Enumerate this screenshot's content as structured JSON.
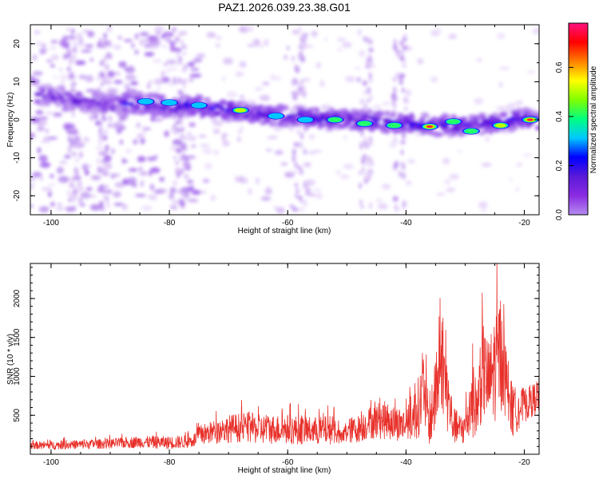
{
  "title": "PAZ1.2026.039.23.38.G01",
  "chart_data": [
    {
      "type": "heatmap",
      "name": "spectrogram",
      "xlabel": "Height of straight line (km)",
      "ylabel": "Frequency (Hz)",
      "xlim": [
        -103.5,
        -17.5
      ],
      "ylim": [
        -25,
        25
      ],
      "xticks": [
        -100,
        -80,
        -60,
        -40,
        -20
      ],
      "xtick_labels": [
        "-100",
        "-80",
        "-60",
        "-40",
        "-20"
      ],
      "yticks": [
        -20,
        -10,
        0,
        10,
        20
      ],
      "ytick_labels": [
        "-20",
        "-10",
        "0",
        "10",
        "20"
      ],
      "colorbar": {
        "label": "Normalized spectral amplitude",
        "range": [
          0,
          0.78
        ],
        "ticks": [
          0,
          0.2,
          0.4,
          0.6
        ],
        "tick_labels": [
          "0.0",
          "0.2",
          "0.4",
          "0.6"
        ],
        "colors": [
          "#ffffff",
          "#e6d0fa",
          "#b58cf0",
          "#8a2be2",
          "#5a1ad8",
          "#0000ff",
          "#00c8ff",
          "#00ff80",
          "#80ff00",
          "#ffff00",
          "#ff8000",
          "#ff0000",
          "#ff1080"
        ]
      },
      "ridge": {
        "description": "dominant frequency trace",
        "x": [
          -101,
          -95,
          -90,
          -85,
          -80,
          -75,
          -70,
          -65,
          -60,
          -55,
          -50,
          -45,
          -40,
          -35,
          -30,
          -25,
          -20,
          -18
        ],
        "freq": [
          6.5,
          5.0,
          4.0,
          4.5,
          3.5,
          3.5,
          2.5,
          1.5,
          1.0,
          0.5,
          0.0,
          -0.5,
          -1.0,
          -1.5,
          -1.5,
          -1.0,
          0.5,
          -0.5
        ]
      },
      "peaks": [
        {
          "x": -84,
          "freq": 4.8,
          "amp": 0.35
        },
        {
          "x": -80,
          "freq": 4.5,
          "amp": 0.3
        },
        {
          "x": -75,
          "freq": 3.8,
          "amp": 0.35
        },
        {
          "x": -68,
          "freq": 2.5,
          "amp": 0.55
        },
        {
          "x": -62,
          "freq": 1.0,
          "amp": 0.35
        },
        {
          "x": -57,
          "freq": 0.0,
          "amp": 0.3
        },
        {
          "x": -52,
          "freq": 0.0,
          "amp": 0.45
        },
        {
          "x": -47,
          "freq": -1.0,
          "amp": 0.4
        },
        {
          "x": -42,
          "freq": -1.5,
          "amp": 0.45
        },
        {
          "x": -36,
          "freq": -1.8,
          "amp": 0.78
        },
        {
          "x": -32,
          "freq": -0.5,
          "amp": 0.45
        },
        {
          "x": -29,
          "freq": -3.0,
          "amp": 0.4
        },
        {
          "x": -24,
          "freq": -1.5,
          "amp": 0.55
        },
        {
          "x": -19,
          "freq": 0.0,
          "amp": 0.78
        }
      ]
    },
    {
      "type": "line",
      "name": "snr",
      "xlabel": "Height of straight line (km)",
      "ylabel": "SNR (10 * v/v)",
      "xlim": [
        -103.5,
        -17.5
      ],
      "ylim": [
        0,
        2450
      ],
      "xticks": [
        -100,
        -80,
        -60,
        -40,
        -20
      ],
      "xtick_labels": [
        "-100",
        "-80",
        "-60",
        "-40",
        "-20"
      ],
      "yticks": [
        500,
        1000,
        1500,
        2000
      ],
      "ytick_labels": [
        "500",
        "1000",
        "1500",
        "2000"
      ],
      "line_color": "#e8302a",
      "envelope": {
        "x": [
          -103.5,
          -100,
          -95,
          -90,
          -85,
          -80,
          -76,
          -75,
          -73,
          -70,
          -67,
          -65,
          -60,
          -55,
          -52,
          -51,
          -50,
          -48,
          -46,
          -44,
          -42,
          -40,
          -39,
          -38,
          -37,
          -36,
          -35,
          -34,
          -33,
          -32,
          -31,
          -30,
          -29,
          -28,
          -27,
          -26,
          -25,
          -24,
          -23,
          -22,
          -21,
          -20,
          -19,
          -18,
          -17.5
        ],
        "base": [
          110,
          110,
          120,
          130,
          150,
          140,
          160,
          230,
          260,
          310,
          330,
          300,
          300,
          280,
          300,
          180,
          280,
          310,
          390,
          420,
          380,
          350,
          420,
          550,
          750,
          330,
          700,
          1150,
          700,
          350,
          300,
          300,
          620,
          560,
          1020,
          850,
          1050,
          1250,
          800,
          500,
          560,
          600,
          650,
          700,
          750
        ],
        "amp": [
          80,
          90,
          100,
          110,
          130,
          140,
          140,
          220,
          250,
          300,
          330,
          320,
          320,
          300,
          320,
          150,
          280,
          300,
          360,
          420,
          380,
          370,
          450,
          650,
          780,
          420,
          850,
          1050,
          800,
          400,
          350,
          380,
          750,
          650,
          1050,
          900,
          1200,
          1250,
          900,
          560,
          460,
          380,
          330,
          380,
          450
        ]
      }
    }
  ]
}
